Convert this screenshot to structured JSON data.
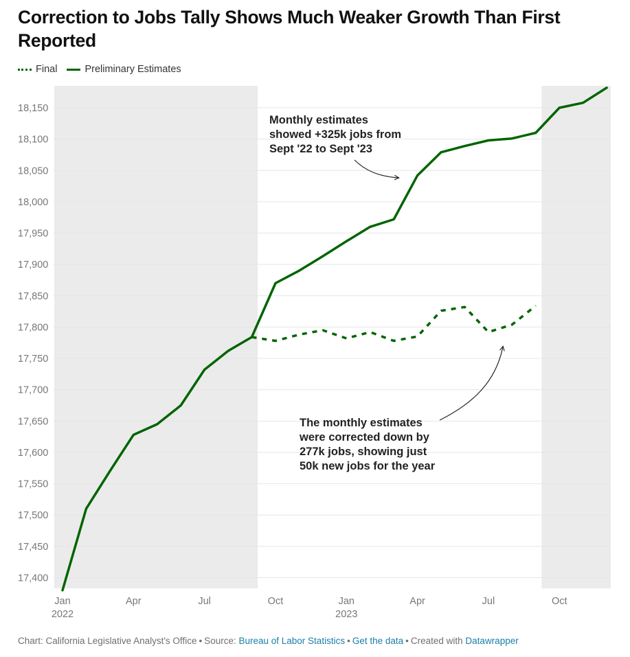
{
  "title": "Correction to Jobs Tally Shows Much Weaker Growth Than First Reported",
  "legend": [
    {
      "label": "Final",
      "style": "dashed"
    },
    {
      "label": "Preliminary Estimates",
      "style": "solid"
    }
  ],
  "footer": {
    "chart_by": "Chart: California Legislative Analyst's Office",
    "source_prefix": "Source:",
    "source_link": "Bureau of Labor Statistics",
    "get_data": "Get the data",
    "created_prefix": "Created with",
    "created_link": "Datawrapper"
  },
  "colors": {
    "line": "#006400",
    "shade": "#ebebeb",
    "grid": "#e6e6e6",
    "axis_text": "#777777",
    "annotation_text": "#222222"
  },
  "chart_data": {
    "type": "line",
    "title": "Correction to Jobs Tally Shows Much Weaker Growth Than First Reported",
    "xlabel": "",
    "ylabel": "",
    "ylim": [
      17380,
      18180
    ],
    "y_ticks": [
      17400,
      17450,
      17500,
      17550,
      17600,
      17650,
      17700,
      17750,
      17800,
      17850,
      17900,
      17950,
      18000,
      18050,
      18100,
      18150
    ],
    "x_start": "Jan 2022",
    "x_ticks": [
      {
        "month_index": 0,
        "label": "Jan",
        "sublabel": "2022"
      },
      {
        "month_index": 3,
        "label": "Apr",
        "sublabel": ""
      },
      {
        "month_index": 6,
        "label": "Jul",
        "sublabel": ""
      },
      {
        "month_index": 9,
        "label": "Oct",
        "sublabel": ""
      },
      {
        "month_index": 12,
        "label": "Jan",
        "sublabel": "2023"
      },
      {
        "month_index": 15,
        "label": "Apr",
        "sublabel": ""
      },
      {
        "month_index": 18,
        "label": "Jul",
        "sublabel": ""
      },
      {
        "month_index": 21,
        "label": "Oct",
        "sublabel": ""
      }
    ],
    "shaded_ranges": [
      [
        0,
        8.6
      ],
      [
        20.6,
        23.6
      ]
    ],
    "series": [
      {
        "name": "Preliminary Estimates",
        "style": "solid",
        "start_index": 0,
        "values": [
          17380,
          17510,
          17570,
          17628,
          17645,
          17675,
          17732,
          17762,
          17784,
          17870,
          17890,
          17913,
          17937,
          17960,
          17972,
          18042,
          18079,
          18089,
          18098,
          18101,
          18110,
          18150,
          18158,
          18182
        ]
      },
      {
        "name": "Final",
        "style": "dashed",
        "start_index": 8,
        "values": [
          17784,
          17778,
          17788,
          17795,
          17782,
          17792,
          17778,
          17785,
          17826,
          17832,
          17792,
          17804,
          17834
        ]
      }
    ],
    "annotations": [
      {
        "id": "prelim",
        "lines": [
          "Monthly estimates",
          "showed +325k jobs from",
          "Sept '22 to Sept '23"
        ]
      },
      {
        "id": "final",
        "lines": [
          "The monthly estimates",
          "were corrected down by",
          "277k jobs, showing just",
          "50k new jobs for the year"
        ]
      }
    ]
  }
}
